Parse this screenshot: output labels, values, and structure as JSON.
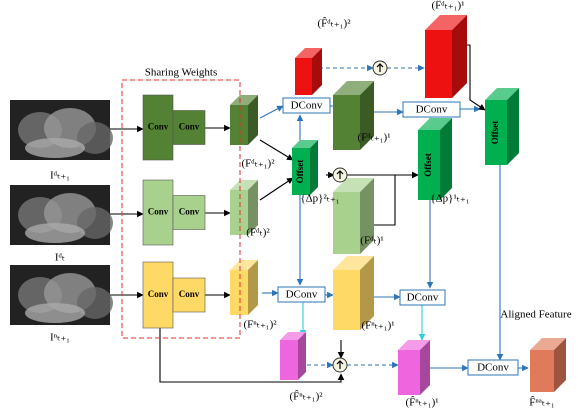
{
  "left_panel": {
    "title": "Sharing Weights",
    "images": [
      {
        "label": "Iᵈₜ₊₁"
      },
      {
        "label": "Iᵈₜ"
      },
      {
        "label": "Iⁿₜ₊₁"
      }
    ],
    "conv_rows": [
      [
        "Conv",
        "Conv"
      ],
      [
        "Conv",
        "Conv"
      ],
      [
        "Conv",
        "Conv"
      ]
    ]
  },
  "blocks": {
    "dconv": [
      "DConv",
      "DConv",
      "DConv",
      "DConv",
      "DConv"
    ],
    "offset": [
      "Offset",
      "Offset",
      "Offset"
    ]
  },
  "features": {
    "fd_t1_2": "(Fᵈₜ₊₁)²",
    "fd_t_2": "(Fᵈₜ)²",
    "fn_t1_2": "(Fⁿₜ₊₁)²",
    "fd_t1_1": "(Fᵈₜ₊₁)¹",
    "fd_t_1": "(Fᵈₜ)¹",
    "fn_t1_1": "(Fⁿₜ₊₁)¹",
    "dp_2": "{Δp}²ₜ₊₁",
    "dp_1": "{Δp}¹ₜ₊₁",
    "hat_fd_2": "(F̂ᵈₜ₊₁)²",
    "hat_fd_1": "(F̂ᵈₜ₊₁)¹",
    "hat_fn_2": "(F̂ⁿₜ₊₁)²",
    "hat_fn_1": "(F̂ⁿₜ₊₁)¹"
  },
  "output": {
    "title": "Aligned Feature",
    "label": "F̂ⁿᵃₜ₊₁"
  }
}
